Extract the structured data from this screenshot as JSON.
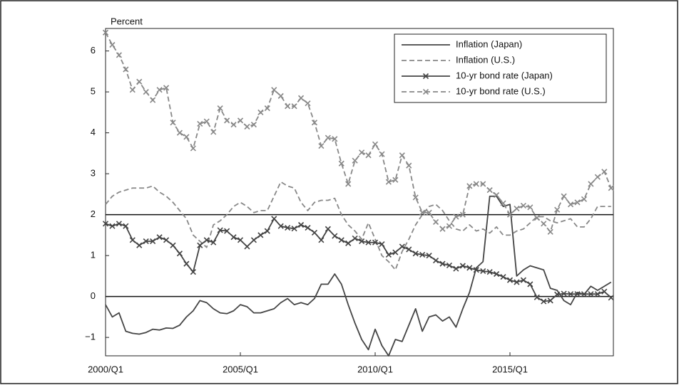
{
  "chart_data": {
    "type": "line",
    "y_label": "Percent",
    "categories": [
      "2000/Q1",
      null,
      null,
      null,
      null,
      null,
      null,
      null,
      null,
      null,
      null,
      null,
      null,
      null,
      null,
      null,
      null,
      null,
      null,
      null,
      "2005/Q1",
      null,
      null,
      null,
      null,
      null,
      null,
      null,
      null,
      null,
      null,
      null,
      null,
      null,
      null,
      null,
      null,
      null,
      null,
      null,
      "2010/Q1",
      null,
      null,
      null,
      null,
      null,
      null,
      null,
      null,
      null,
      null,
      null,
      null,
      null,
      null,
      null,
      null,
      null,
      null,
      null,
      "2015/Q1",
      null,
      null,
      null,
      null,
      null,
      null,
      null,
      null,
      null,
      null,
      null,
      null,
      null,
      null,
      null
    ],
    "ylim": [
      -1.45,
      6.55
    ],
    "yticks": [
      {
        "value": -1,
        "label": "−1"
      },
      0,
      1,
      2,
      3,
      4,
      5,
      6
    ],
    "reference_lines": [
      0,
      2
    ],
    "grid": false,
    "legend": "upper right",
    "series": [
      {
        "name": "Inflation (Japan)",
        "color": "#444444",
        "dash": false,
        "marker": null,
        "values": [
          -0.2,
          -0.5,
          -0.4,
          -0.85,
          -0.9,
          -0.92,
          -0.88,
          -0.8,
          -0.82,
          -0.77,
          -0.78,
          -0.7,
          -0.5,
          -0.35,
          -0.1,
          -0.15,
          -0.3,
          -0.4,
          -0.42,
          -0.35,
          -0.2,
          -0.25,
          -0.4,
          -0.4,
          -0.35,
          -0.3,
          -0.15,
          -0.05,
          -0.2,
          -0.15,
          -0.2,
          -0.05,
          0.3,
          0.3,
          0.55,
          0.3,
          -0.2,
          -0.65,
          -1.05,
          -1.3,
          -0.8,
          -1.2,
          -1.45,
          -1.05,
          -1.1,
          -0.7,
          -0.3,
          -0.85,
          -0.5,
          -0.45,
          -0.6,
          -0.5,
          -0.75,
          -0.3,
          0.1,
          0.7,
          0.85,
          2.45,
          2.45,
          2.2,
          2.25,
          0.5,
          0.65,
          0.75,
          0.7,
          0.65,
          0.2,
          0.15,
          -0.1,
          -0.2,
          0.1,
          0.05,
          0.25,
          0.15,
          0.25,
          0.35
        ]
      },
      {
        "name": "Inflation (U.S.)",
        "color": "#888888",
        "dash": true,
        "marker": null,
        "values": [
          2.25,
          2.45,
          2.55,
          2.6,
          2.65,
          2.65,
          2.65,
          2.7,
          2.55,
          2.45,
          2.3,
          2.1,
          1.9,
          1.5,
          1.35,
          1.2,
          1.75,
          1.85,
          2.0,
          2.2,
          2.3,
          2.2,
          2.05,
          2.1,
          2.1,
          2.45,
          2.8,
          2.7,
          2.65,
          2.3,
          2.1,
          2.3,
          2.35,
          2.35,
          2.4,
          2.0,
          1.75,
          1.6,
          1.4,
          1.8,
          1.4,
          1.0,
          0.85,
          0.65,
          1.1,
          1.4,
          1.75,
          2.0,
          2.2,
          2.25,
          2.1,
          1.85,
          1.65,
          1.6,
          1.75,
          1.6,
          1.65,
          1.55,
          1.7,
          1.5,
          1.5,
          1.6,
          1.65,
          1.8,
          1.95,
          1.95,
          1.85,
          1.8,
          1.85,
          1.9,
          1.7,
          1.7,
          1.9,
          2.2,
          2.2,
          2.2
        ]
      },
      {
        "name": "10-yr bond rate (Japan)",
        "color": "#444444",
        "dash": false,
        "marker": "x",
        "values": [
          1.78,
          1.72,
          1.78,
          1.72,
          1.38,
          1.25,
          1.35,
          1.35,
          1.45,
          1.38,
          1.25,
          1.05,
          0.8,
          0.6,
          1.25,
          1.38,
          1.32,
          1.62,
          1.6,
          1.45,
          1.38,
          1.22,
          1.38,
          1.5,
          1.6,
          1.9,
          1.72,
          1.68,
          1.66,
          1.75,
          1.68,
          1.56,
          1.38,
          1.65,
          1.48,
          1.38,
          1.3,
          1.42,
          1.35,
          1.32,
          1.32,
          1.28,
          1.02,
          1.08,
          1.22,
          1.15,
          1.05,
          1.02,
          1.0,
          0.88,
          0.8,
          0.76,
          0.68,
          0.75,
          0.7,
          0.65,
          0.62,
          0.6,
          0.55,
          0.48,
          0.4,
          0.35,
          0.4,
          0.3,
          -0.02,
          -0.12,
          -0.1,
          0.05,
          0.07,
          0.06,
          0.06,
          0.06,
          0.06,
          0.06,
          0.12,
          -0.03
        ]
      },
      {
        "name": "10-yr bond rate (U.S.)",
        "color": "#888888",
        "dash": true,
        "marker": "x",
        "values": [
          6.45,
          6.15,
          5.9,
          5.55,
          5.05,
          5.25,
          5.0,
          4.8,
          5.05,
          5.1,
          4.25,
          4.0,
          3.9,
          3.62,
          4.22,
          4.28,
          4.02,
          4.6,
          4.3,
          4.2,
          4.3,
          4.15,
          4.2,
          4.5,
          4.6,
          5.05,
          4.9,
          4.65,
          4.65,
          4.85,
          4.72,
          4.25,
          3.68,
          3.88,
          3.85,
          3.25,
          2.75,
          3.32,
          3.52,
          3.45,
          3.72,
          3.48,
          2.8,
          2.85,
          3.45,
          3.2,
          2.42,
          2.05,
          2.05,
          1.82,
          1.65,
          1.72,
          1.95,
          2.0,
          2.7,
          2.75,
          2.75,
          2.6,
          2.48,
          2.28,
          2.0,
          2.15,
          2.22,
          2.18,
          1.92,
          1.78,
          1.58,
          2.12,
          2.45,
          2.25,
          2.3,
          2.38,
          2.75,
          2.92,
          3.05,
          2.65
        ]
      }
    ]
  }
}
